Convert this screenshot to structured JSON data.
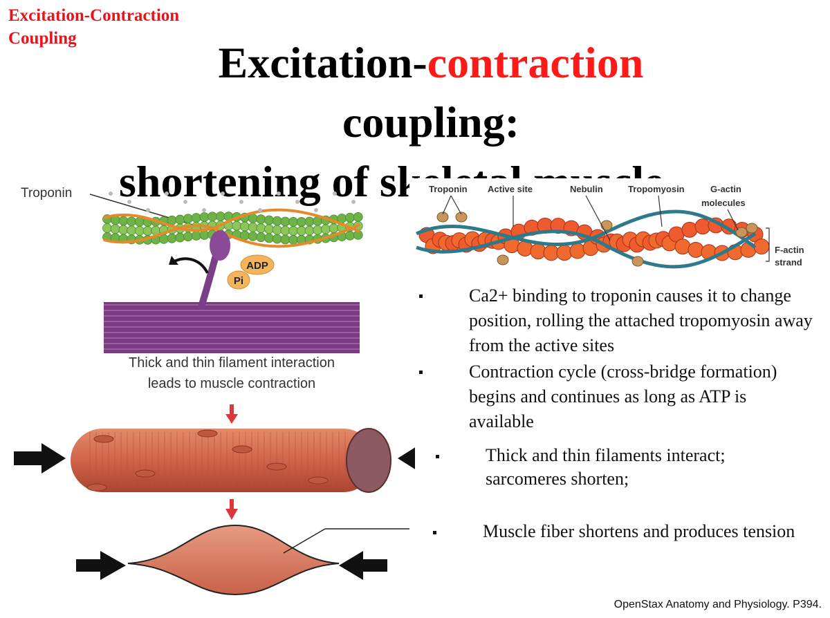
{
  "slide": {
    "corner_label": [
      "Excitation-Contraction",
      "Coupling"
    ],
    "title": {
      "line1_black": "Excitation-",
      "line1_red": "contraction",
      "line2": "coupling:",
      "line3": "shortening of skeletal muscle"
    },
    "left_figure": {
      "troponin": "Troponin",
      "adp": "ADP",
      "pi": "Pi",
      "caption": [
        "Thick and thin filament interaction",
        "leads to muscle contraction"
      ]
    },
    "right_figure": {
      "troponin": "Troponin",
      "active_site": "Active site",
      "nebulin": "Nebulin",
      "tropomyosin": "Tropomyosin",
      "g_actin": [
        "G-actin",
        "molecules"
      ],
      "f_actin": [
        "F-actin",
        "strand"
      ]
    },
    "bullets": [
      "Ca2+ binding to troponin causes it to change position, rolling the attached tropomyosin away from the active sites",
      "Contraction cycle (cross-bridge formation) begins and continues as long as ATP is available",
      "Thick and thin filaments interact; sarcomeres shorten;",
      "Muscle fiber shortens and produces tension"
    ],
    "credit": "OpenStax Anatomy and Physiology. P394."
  }
}
